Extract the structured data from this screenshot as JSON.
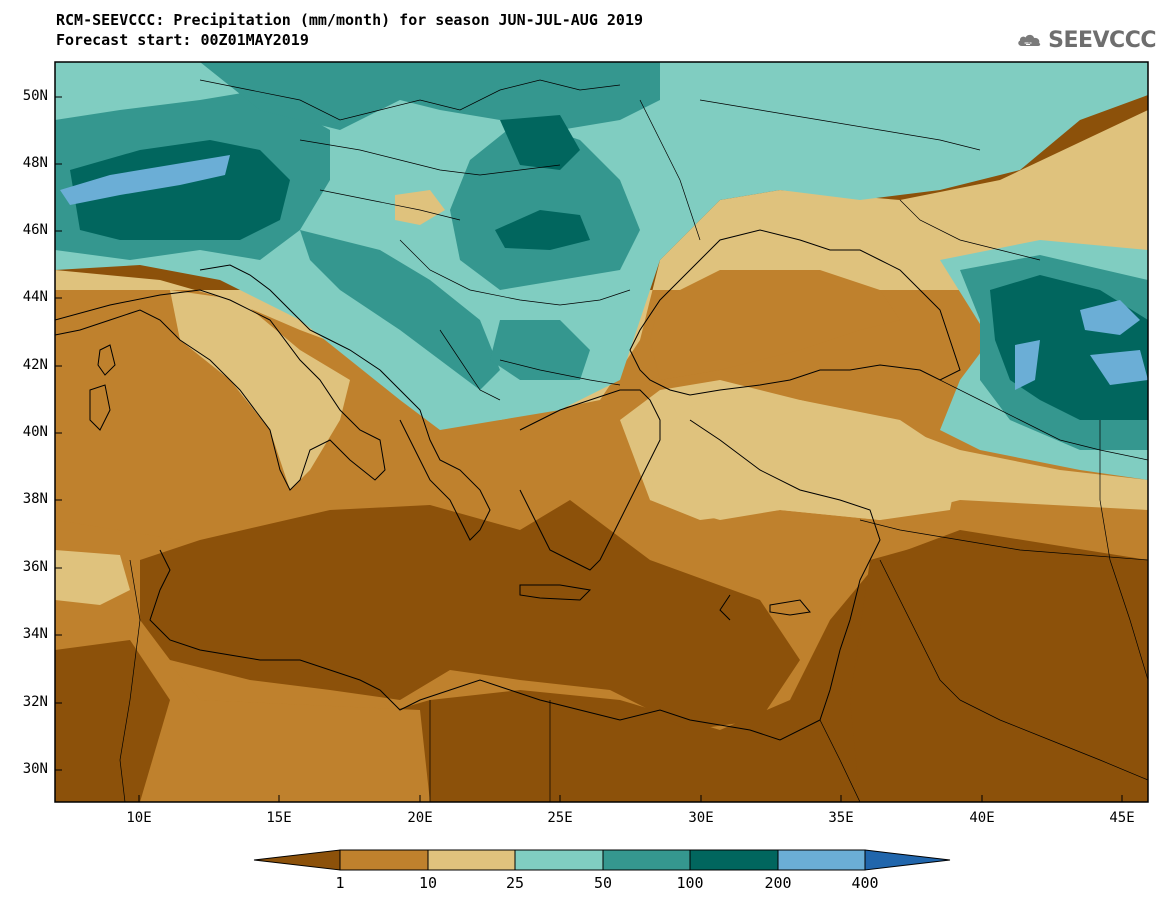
{
  "title": {
    "line1": "RCM-SEEVCCC: Precipitation (mm/month) for season JUN-JUL-AUG 2019",
    "line2": "Forecast start: 00Z01MAY2019"
  },
  "logo": {
    "text": "SEEVCCC",
    "icon": "cloud-icon"
  },
  "map": {
    "lat_labels": [
      "50N",
      "48N",
      "46N",
      "44N",
      "42N",
      "40N",
      "38N",
      "36N",
      "34N",
      "32N",
      "30N"
    ],
    "lon_labels": [
      "10E",
      "15E",
      "20E",
      "25E",
      "30E",
      "35E",
      "40E",
      "45E"
    ]
  },
  "colorbar": {
    "labels": [
      "1",
      "10",
      "25",
      "50",
      "100",
      "200",
      "400"
    ],
    "colors": [
      "#8c510a",
      "#bf812d",
      "#dfc27d",
      "#80cdc1",
      "#35978f",
      "#01665e",
      "#6baed6",
      "#2166ac"
    ]
  }
}
